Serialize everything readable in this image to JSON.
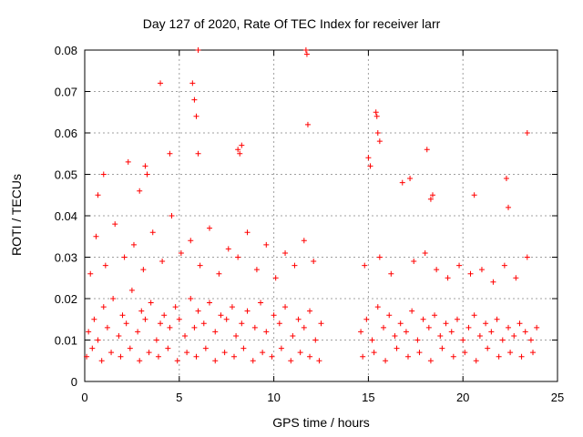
{
  "chart_data": {
    "type": "scatter",
    "title": "Day 127 of 2020, Rate Of TEC Index for receiver larr",
    "xlabel": "GPS time / hours",
    "ylabel": "ROTI / TECUs",
    "xlim": [
      0,
      25
    ],
    "ylim": [
      0,
      0.08
    ],
    "x_ticks": [
      "0",
      "5",
      "10",
      "15",
      "20",
      "25"
    ],
    "y_ticks": [
      "0",
      "0.01",
      "0.02",
      "0.03",
      "0.04",
      "0.05",
      "0.06",
      "0.07",
      "0.08"
    ],
    "grid": true,
    "marker": "+",
    "marker_color": "#ff0000",
    "series": [
      {
        "x": [
          0.2,
          0.5,
          0.7,
          1.0,
          1.2,
          1.5,
          1.8,
          2.0,
          2.2,
          2.5,
          2.8,
          3.0,
          3.2,
          3.5,
          3.8,
          4.0,
          4.2,
          4.5,
          4.8,
          5.0,
          5.3,
          5.6,
          5.8,
          6.0,
          6.3,
          6.6,
          6.9,
          7.2,
          7.5,
          7.8,
          8.0,
          8.3,
          8.6,
          9.0,
          9.3,
          9.6,
          10.0,
          10.3,
          10.6,
          11.0,
          11.3,
          11.6,
          11.9,
          12.2,
          12.5,
          0.1,
          0.4,
          0.9,
          1.4,
          1.9,
          2.4,
          2.9,
          3.4,
          3.9,
          4.4,
          4.9,
          5.4,
          5.9,
          6.4,
          6.9,
          7.4,
          7.9,
          8.4,
          8.9,
          9.4,
          9.9,
          10.4,
          10.9,
          11.4,
          11.9,
          12.4,
          0.3,
          1.1,
          2.1,
          3.1,
          4.1,
          5.1,
          6.1,
          7.1,
          8.1,
          9.1,
          10.1,
          11.1,
          12.1,
          0.6,
          1.6,
          2.6,
          3.6,
          4.6,
          5.6,
          6.6,
          7.6,
          8.6,
          9.6,
          10.6,
          11.6,
          14.6,
          14.9,
          15.2,
          15.5,
          15.8,
          16.1,
          16.4,
          16.7,
          17.0,
          17.3,
          17.6,
          17.9,
          18.2,
          18.5,
          18.8,
          19.1,
          19.4,
          19.7,
          20.0,
          20.3,
          20.6,
          20.9,
          21.2,
          21.5,
          21.8,
          22.1,
          22.4,
          22.7,
          23.0,
          23.3,
          23.6,
          23.9,
          14.7,
          15.3,
          15.9,
          16.5,
          17.1,
          17.7,
          18.3,
          18.9,
          19.5,
          20.1,
          20.7,
          21.3,
          21.9,
          22.5,
          23.1,
          23.7,
          14.8,
          15.6,
          16.2,
          17.4,
          18.0,
          18.6,
          19.2,
          19.8,
          20.4,
          21.0,
          21.6,
          22.2,
          22.8,
          23.4,
          4.0,
          5.7,
          5.8,
          5.9,
          6.0,
          11.7,
          11.75,
          11.8,
          15.4,
          15.5,
          15.6,
          15.45,
          23.4,
          18.4,
          18.1,
          18.3,
          15.0,
          15.1,
          16.8,
          17.2,
          20.6,
          22.3,
          22.4,
          0.7,
          1.0,
          8.1,
          8.2,
          8.3,
          2.3,
          3.2,
          4.5,
          6.0,
          2.9,
          3.3
        ],
        "y": [
          0.012,
          0.015,
          0.01,
          0.018,
          0.013,
          0.02,
          0.011,
          0.016,
          0.014,
          0.022,
          0.012,
          0.017,
          0.015,
          0.019,
          0.01,
          0.014,
          0.016,
          0.013,
          0.018,
          0.015,
          0.011,
          0.02,
          0.013,
          0.017,
          0.014,
          0.019,
          0.012,
          0.016,
          0.015,
          0.018,
          0.011,
          0.014,
          0.017,
          0.013,
          0.019,
          0.012,
          0.016,
          0.014,
          0.018,
          0.011,
          0.015,
          0.013,
          0.017,
          0.01,
          0.014,
          0.006,
          0.008,
          0.005,
          0.007,
          0.006,
          0.008,
          0.005,
          0.007,
          0.006,
          0.008,
          0.005,
          0.007,
          0.006,
          0.008,
          0.005,
          0.007,
          0.006,
          0.008,
          0.005,
          0.007,
          0.006,
          0.008,
          0.005,
          0.007,
          0.006,
          0.005,
          0.026,
          0.028,
          0.03,
          0.027,
          0.029,
          0.031,
          0.028,
          0.026,
          0.03,
          0.027,
          0.025,
          0.028,
          0.029,
          0.035,
          0.038,
          0.033,
          0.036,
          0.04,
          0.034,
          0.037,
          0.032,
          0.036,
          0.033,
          0.031,
          0.034,
          0.012,
          0.015,
          0.01,
          0.018,
          0.013,
          0.016,
          0.011,
          0.014,
          0.012,
          0.017,
          0.01,
          0.015,
          0.013,
          0.016,
          0.011,
          0.014,
          0.012,
          0.015,
          0.01,
          0.013,
          0.016,
          0.011,
          0.014,
          0.012,
          0.015,
          0.01,
          0.013,
          0.011,
          0.014,
          0.012,
          0.01,
          0.013,
          0.006,
          0.007,
          0.005,
          0.008,
          0.006,
          0.007,
          0.005,
          0.008,
          0.006,
          0.007,
          0.005,
          0.008,
          0.006,
          0.007,
          0.006,
          0.007,
          0.028,
          0.03,
          0.026,
          0.029,
          0.031,
          0.027,
          0.025,
          0.028,
          0.026,
          0.027,
          0.024,
          0.028,
          0.025,
          0.03,
          0.072,
          0.072,
          0.068,
          0.064,
          0.08,
          0.08,
          0.079,
          0.062,
          0.065,
          0.06,
          0.058,
          0.064,
          0.06,
          0.045,
          0.056,
          0.044,
          0.054,
          0.052,
          0.048,
          0.049,
          0.045,
          0.049,
          0.042,
          0.045,
          0.05,
          0.056,
          0.055,
          0.057,
          0.053,
          0.052,
          0.055,
          0.055,
          0.046,
          0.05
        ]
      }
    ]
  }
}
